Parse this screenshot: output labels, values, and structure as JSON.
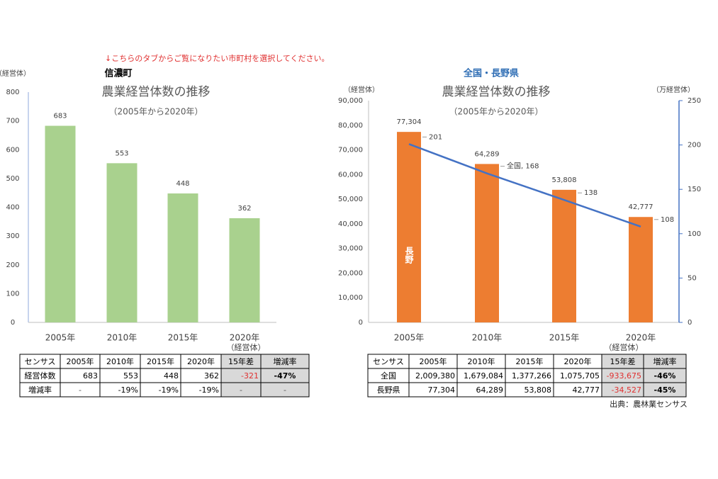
{
  "notice": "↓こちらのタブからご覧になりたい市町村を選択してください。",
  "chart_data": [
    {
      "type": "bar",
      "header": "信濃町",
      "title": "農業経営体数の推移",
      "subtitle": "（2005年から2020年）",
      "y_label": "（経営体）",
      "categories": [
        "2005年",
        "2010年",
        "2015年",
        "2020年"
      ],
      "values": [
        683,
        553,
        448,
        362
      ],
      "color": "#a9d18e",
      "ylim": [
        0,
        800
      ],
      "yticks": [
        0,
        100,
        200,
        300,
        400,
        500,
        600,
        700,
        800
      ],
      "grid": false
    },
    {
      "type": "bar_line",
      "header": "全国・長野県",
      "title": "農業経営体数の推移",
      "subtitle": "（2005年から2020年）",
      "y_label": "（経営体）",
      "y2_label": "（万経営体）",
      "categories": [
        "2005年",
        "2010年",
        "2015年",
        "2020年"
      ],
      "series": [
        {
          "name": "長野",
          "type": "bar",
          "color": "#ed7d31",
          "values": [
            77304,
            64289,
            53808,
            42777
          ],
          "value_labels": [
            "77,304",
            "64,289",
            "53,808",
            "42,777"
          ]
        },
        {
          "name": "全国",
          "type": "line",
          "axis": "y2",
          "color": "#4472c4",
          "values": [
            201,
            168,
            138,
            108
          ],
          "value_labels": [
            "201",
            "全国, 168",
            "138",
            "108"
          ]
        }
      ],
      "ylim": [
        0,
        90000
      ],
      "yticks": [
        0,
        {
          "value": 10000,
          "label": "10,000"
        },
        {
          "value": 20000,
          "label": "20,000"
        },
        {
          "value": 30000,
          "label": "30,000"
        },
        {
          "value": 40000,
          "label": "40,000"
        },
        {
          "value": 50000,
          "label": "50,000"
        },
        {
          "value": 60000,
          "label": "60,000"
        },
        {
          "value": 70000,
          "label": "70,000"
        },
        {
          "value": 80000,
          "label": "80,000"
        },
        {
          "value": 90000,
          "label": "90,000"
        }
      ],
      "y2lim": [
        0,
        250
      ],
      "y2ticks": [
        0,
        50,
        100,
        150,
        200,
        250
      ],
      "grid": false
    }
  ],
  "tables": [
    {
      "unit": "（経営体）",
      "header": [
        "センサス",
        "2005年",
        "2010年",
        "2015年",
        "2020年",
        "15年差",
        "増減率"
      ],
      "rows": [
        [
          "経営体数",
          "683",
          "553",
          "448",
          "362",
          "-321",
          "-47%"
        ],
        [
          "増減率",
          "-",
          "-19%",
          "-19%",
          "-19%",
          "-",
          "-"
        ]
      ]
    },
    {
      "unit": "（経営体）",
      "header": [
        "センサス",
        "2005年",
        "2010年",
        "2015年",
        "2020年",
        "15年差",
        "増減率"
      ],
      "rows": [
        [
          "全国",
          "2,009,380",
          "1,679,084",
          "1,377,266",
          "1,075,705",
          "-933,675",
          "-46%"
        ],
        [
          "長野県",
          "77,304",
          "64,289",
          "53,808",
          "42,777",
          "-34,527",
          "-45%"
        ]
      ]
    }
  ],
  "source": "出典：農林業センサス"
}
